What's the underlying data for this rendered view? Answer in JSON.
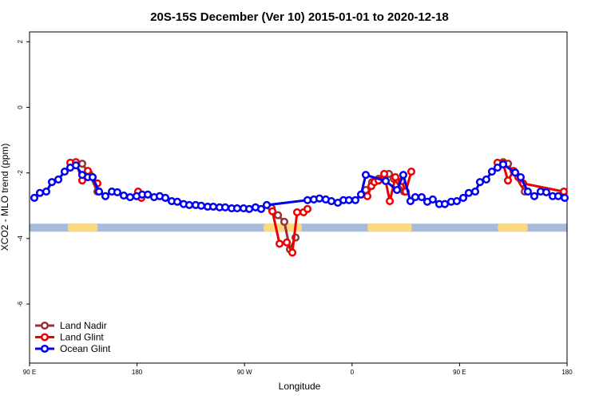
{
  "chart_data": {
    "type": "line",
    "title": "20S-15S December (Ver 10)   2015-01-01 to 2020-12-18",
    "xlabel": "Longitude",
    "ylabel": "XCO2 - MLO trend (ppm)",
    "xlim": [
      90,
      540
    ],
    "ylim": [
      -7.8,
      2.3
    ],
    "xticks": [
      {
        "value": 90,
        "label": "90 E"
      },
      180,
      {
        "value": 270,
        "label": "90 W"
      },
      {
        "value": 360,
        "label": "0"
      },
      {
        "value": 450,
        "label": "90 E"
      },
      {
        "value": 540,
        "label": "180"
      }
    ],
    "yticks": [
      2,
      0,
      -2,
      -4,
      -6
    ],
    "legend": "bottom-left",
    "surface_band": {
      "y": -3.67,
      "ocean_color": "#a7bcdc",
      "land_color": "#fcd97c",
      "land": [
        [
          122,
          147
        ],
        [
          286,
          318
        ],
        [
          373,
          410
        ],
        [
          482,
          507
        ]
      ]
    },
    "series": [
      {
        "name": "Land Nadir",
        "color": "#993333",
        "x": [
          128.8,
          134.1,
          140.1,
          146.8,
          null,
          292.6,
          298.0,
          303.3,
          308.0,
          312.7,
          null,
          371.5,
          376.8,
          382.2,
          390.9,
          394.9,
          403.6,
          null,
          486.5,
          490.6,
          504.6
        ],
        "values": [
          -1.72,
          -1.72,
          -2.03,
          -2.57,
          null,
          -3.07,
          -3.29,
          -3.49,
          -4.33,
          -3.97,
          null,
          -2.52,
          -2.28,
          -2.18,
          -2.03,
          -2.18,
          -2.57,
          null,
          -1.67,
          -1.72,
          -2.57
        ]
      },
      {
        "name": "Land Glint",
        "color": "#ee0000",
        "x": [
          124.1,
          128.8,
          134.1,
          138.8,
          142.8,
          146.8,
          null,
          180.9,
          183.6,
          null,
          293.3,
          299.3,
          305.4,
          310.0,
          314.0,
          319.4,
          322.7,
          null,
          372.8,
          376.2,
          378.8,
          382.2,
          386.9,
          391.6,
          396.3,
          401.6,
          404.9,
          409.6,
          null,
          481.8,
          486.5,
          490.5,
          495.2,
          499.2,
          503.2,
          537.3
        ],
        "values": [
          -1.69,
          -1.67,
          -2.23,
          -1.94,
          -2.13,
          -2.32,
          null,
          -2.57,
          -2.76,
          null,
          -3.17,
          -4.16,
          -4.12,
          -4.43,
          -3.2,
          -3.2,
          -3.1,
          null,
          -2.71,
          -2.4,
          -2.28,
          -2.23,
          -2.03,
          -2.86,
          -2.13,
          -2.25,
          -2.57,
          -1.96,
          null,
          -1.69,
          -1.72,
          -2.23,
          -1.94,
          -2.13,
          -2.32,
          -2.57
        ]
      },
      {
        "name": "Ocean Glint",
        "color": "#0000ee",
        "x": [
          94.0,
          98.7,
          104.0,
          108.7,
          114.1,
          119.4,
          124.1,
          128.8,
          134.1,
          138.8,
          142.8,
          148.2,
          153.5,
          158.9,
          163.5,
          168.9,
          174.2,
          179.6,
          184.3,
          189.0,
          194.3,
          199.0,
          203.7,
          209.0,
          213.7,
          219.0,
          223.7,
          229.1,
          233.7,
          239.1,
          243.8,
          249.1,
          253.8,
          259.2,
          263.8,
          269.2,
          273.9,
          279.2,
          283.9,
          288.6,
          322.7,
          328.0,
          332.7,
          338.0,
          342.7,
          348.1,
          352.8,
          357.4,
          362.8,
          367.5,
          371.5,
          388.2,
          397.6,
          402.9,
          408.9,
          412.9,
          418.3,
          423.0,
          427.6,
          433.0,
          437.7,
          443.0,
          447.7,
          453.1,
          457.7,
          463.1,
          467.1,
          472.4,
          477.1,
          481.8,
          486.5,
          496.6,
          501.2,
          507.2,
          512.6,
          517.9,
          522.6,
          528.0,
          532.6,
          538.0
        ],
        "values": [
          -2.76,
          -2.61,
          -2.57,
          -2.28,
          -2.2,
          -1.96,
          -1.84,
          -1.77,
          -2.06,
          -2.13,
          -2.13,
          -2.57,
          -2.71,
          -2.57,
          -2.59,
          -2.69,
          -2.74,
          -2.71,
          -2.66,
          -2.66,
          -2.74,
          -2.71,
          -2.76,
          -2.86,
          -2.88,
          -2.95,
          -2.98,
          -2.98,
          -3.0,
          -3.03,
          -3.03,
          -3.05,
          -3.05,
          -3.08,
          -3.08,
          -3.08,
          -3.1,
          -3.05,
          -3.1,
          -2.98,
          -2.83,
          -2.81,
          -2.78,
          -2.81,
          -2.86,
          -2.91,
          -2.83,
          -2.83,
          -2.83,
          -2.66,
          -2.06,
          -2.25,
          -2.52,
          -2.06,
          -2.86,
          -2.74,
          -2.74,
          -2.88,
          -2.81,
          -2.95,
          -2.95,
          -2.88,
          -2.86,
          -2.76,
          -2.61,
          -2.57,
          -2.28,
          -2.2,
          -1.96,
          -1.84,
          -1.74,
          -1.99,
          -2.13,
          -2.57,
          -2.71,
          -2.57,
          -2.59,
          -2.71,
          -2.71,
          -2.76
        ]
      }
    ]
  }
}
